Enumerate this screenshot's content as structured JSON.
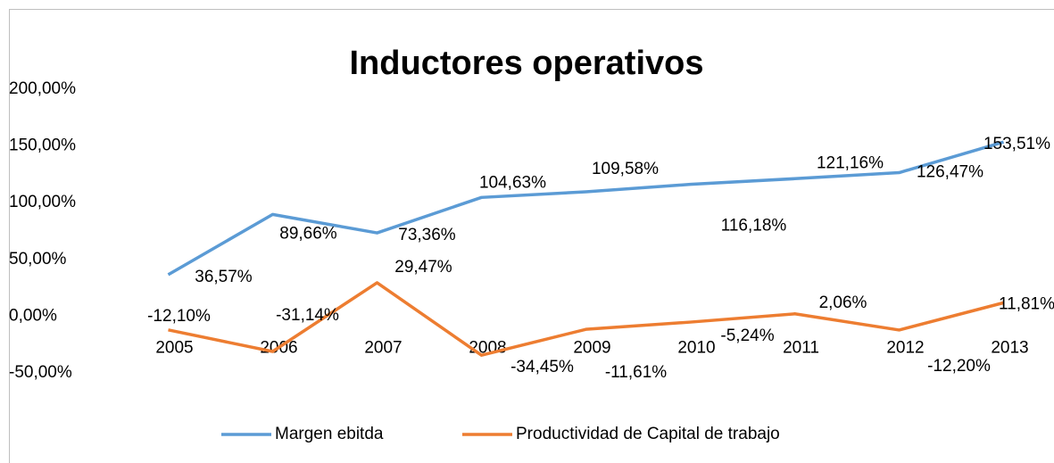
{
  "chart_data": {
    "type": "line",
    "title": "Inductores operativos",
    "categories": [
      "2005",
      "2006",
      "2007",
      "2008",
      "2009",
      "2010",
      "2011",
      "2012",
      "2013"
    ],
    "series": [
      {
        "name": "Margen ebitda",
        "color": "#5b9bd5",
        "values": [
          36.57,
          89.66,
          73.36,
          104.63,
          109.58,
          116.18,
          121.16,
          126.47,
          153.51
        ],
        "value_labels": [
          "36,57%",
          "89,66%",
          "73,36%",
          "104,63%",
          "109,58%",
          "116,18%",
          "121,16%",
          "126,47%",
          "153,51%"
        ]
      },
      {
        "name": "Productividad de Capital de trabajo",
        "color": "#ed7d31",
        "values": [
          -12.1,
          -31.14,
          29.47,
          -34.45,
          -11.61,
          -5.24,
          2.06,
          -12.2,
          11.81
        ],
        "value_labels": [
          "-12,10%",
          "-31,14%",
          "29,47%",
          "-34,45%",
          "-11,61%",
          "-5,24%",
          "2,06%",
          "-12,20%",
          "11,81%"
        ]
      }
    ],
    "ylim": [
      -50,
      200
    ],
    "yticks": [
      {
        "value": -50,
        "label": "-50,00%"
      },
      {
        "value": 0,
        "label": "0,00%"
      },
      {
        "value": 50,
        "label": "50,00%"
      },
      {
        "value": 100,
        "label": "100,00%"
      },
      {
        "value": 150,
        "label": "150,00%"
      },
      {
        "value": 200,
        "label": "200,00%"
      }
    ],
    "legend": "bottom"
  }
}
